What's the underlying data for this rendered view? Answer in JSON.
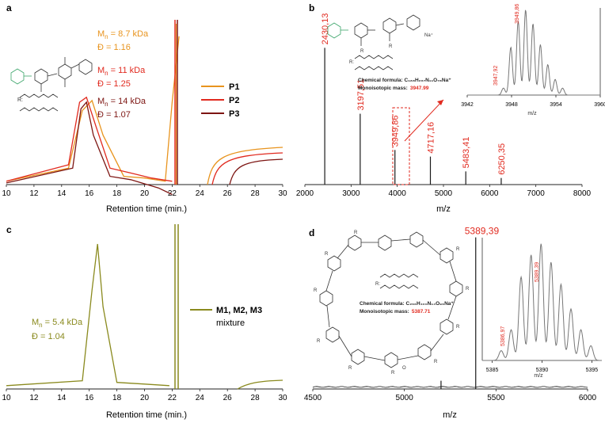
{
  "panels": {
    "a": {
      "letter": "a",
      "type": "line",
      "xlabel": "Retention time (min.)",
      "xlim": [
        10,
        30
      ],
      "xticks": [
        10,
        12,
        14,
        16,
        18,
        20,
        22,
        24,
        26,
        28,
        30
      ],
      "ylim": [
        0,
        1
      ],
      "series": [
        {
          "name": "P1",
          "color": "#e8941e",
          "mn": "8.7 kDa",
          "dispersity": "1.16",
          "x": [
            10,
            14.5,
            15.5,
            16.2,
            17,
            18.5,
            20,
            21.5,
            22,
            22.5
          ],
          "y": [
            0.02,
            0.1,
            0.45,
            0.51,
            0.3,
            0.05,
            0.04,
            0.02,
            0.5,
            0.9
          ]
        },
        {
          "name": "P2",
          "color": "#e12a1f",
          "mn": "11 kDa",
          "dispersity": "1.25",
          "x": [
            10,
            14.5,
            15.3,
            15.8,
            16.5,
            17.5,
            19,
            20.5,
            22
          ],
          "y": [
            0.02,
            0.12,
            0.5,
            0.53,
            0.35,
            0.1,
            0.07,
            0.04,
            0.02
          ]
        },
        {
          "name": "P3",
          "color": "#7d1512",
          "mn": "14 kDa",
          "dispersity": "1.07",
          "x": [
            10,
            14.8,
            15.4,
            15.8,
            16.3,
            17.5,
            19,
            21,
            22
          ],
          "y": [
            0.01,
            0.1,
            0.46,
            0.5,
            0.3,
            0.05,
            0.03,
            -0.02,
            -0.06
          ]
        }
      ],
      "legend_position": "right"
    },
    "b": {
      "letter": "b",
      "type": "line",
      "xlabel": "m/z",
      "xlim": [
        2000,
        8000
      ],
      "xticks": [
        2000,
        3000,
        4000,
        5000,
        6000,
        7000,
        8000
      ],
      "peaks": [
        {
          "mz": 2430.13,
          "label": "2430,13",
          "height": 0.83
        },
        {
          "mz": 3197.51,
          "label": "3197,51",
          "height": 0.43
        },
        {
          "mz": 3949.86,
          "label": "3949,86",
          "height": 0.21
        },
        {
          "mz": 4717.16,
          "label": "4717,16",
          "height": 0.17
        },
        {
          "mz": 5483.41,
          "label": "5483,41",
          "height": 0.08
        },
        {
          "mz": 6250.35,
          "label": "6250,35",
          "height": 0.04
        }
      ],
      "formula_label": "Chemical formula: C₁₈₈H₂₆₇N₁₁O₇₈Na⁺",
      "mass_label": "Monoisotopic mass:",
      "mass_value": "3947.99",
      "molecule_labels": [
        "Na⁺",
        "R:",
        "R",
        "R"
      ],
      "inset": {
        "xlabel": "m/z",
        "xlim": [
          3942,
          3960
        ],
        "xticks": [
          3942,
          3948,
          3954,
          3960
        ],
        "peak_labels": [
          "3947,92",
          "3949,86"
        ]
      }
    },
    "c": {
      "letter": "c",
      "type": "line",
      "xlabel": "Retention time (min.)",
      "xlim": [
        10,
        30
      ],
      "xticks": [
        10,
        12,
        14,
        16,
        18,
        20,
        22,
        24,
        26,
        28,
        30
      ],
      "series": [
        {
          "name": "M1, M2, M3 mixture",
          "color": "#8a8a1e",
          "mn": "5.4 kDa",
          "dispersity": "1.04",
          "x": [
            10,
            15.5,
            16.2,
            16.6,
            17,
            18,
            20,
            21.8
          ],
          "y": [
            0.02,
            0.05,
            0.6,
            0.88,
            0.5,
            0.04,
            0.03,
            0.02
          ]
        }
      ],
      "legend_label_bold": "M1, M2, M3",
      "legend_label_extra": "mixture"
    },
    "d": {
      "letter": "d",
      "type": "line",
      "xlabel": "m/z",
      "xlim": [
        4500,
        6000
      ],
      "xticks": [
        4500,
        5000,
        5500,
        6000
      ],
      "peaks": [
        {
          "mz": 5389.39,
          "label": "5389,39",
          "height": 0.92
        },
        {
          "mz": 5200,
          "label": "",
          "height": 0.05
        }
      ],
      "formula_label": "Chemical formula: C₂₆₆H₄₀₀N₁₄O₉₆Na⁺",
      "mass_label": "Monoisotopic mass:",
      "mass_value": "5387.71",
      "molecule_labels": [
        "R",
        "R",
        "R",
        "R",
        "R",
        "R",
        "R",
        "R",
        "R",
        "R",
        "R:",
        "O"
      ],
      "inset": {
        "xlabel": "m/z",
        "xlim": [
          5384,
          5396
        ],
        "xticks": [
          5385,
          5390,
          5395
        ],
        "peak_labels": [
          "5386,97",
          "5389,39"
        ]
      }
    }
  },
  "labels": {
    "mn_prefix": "M",
    "mn_sub": "n",
    "mn_eq": " = ",
    "disp_prefix": "Đ = "
  },
  "colors": {
    "axis": "#222222",
    "red": "#e12a1f",
    "green": "#3ca56a",
    "spectrum": "#1a1a1a",
    "inset": "#777777"
  }
}
